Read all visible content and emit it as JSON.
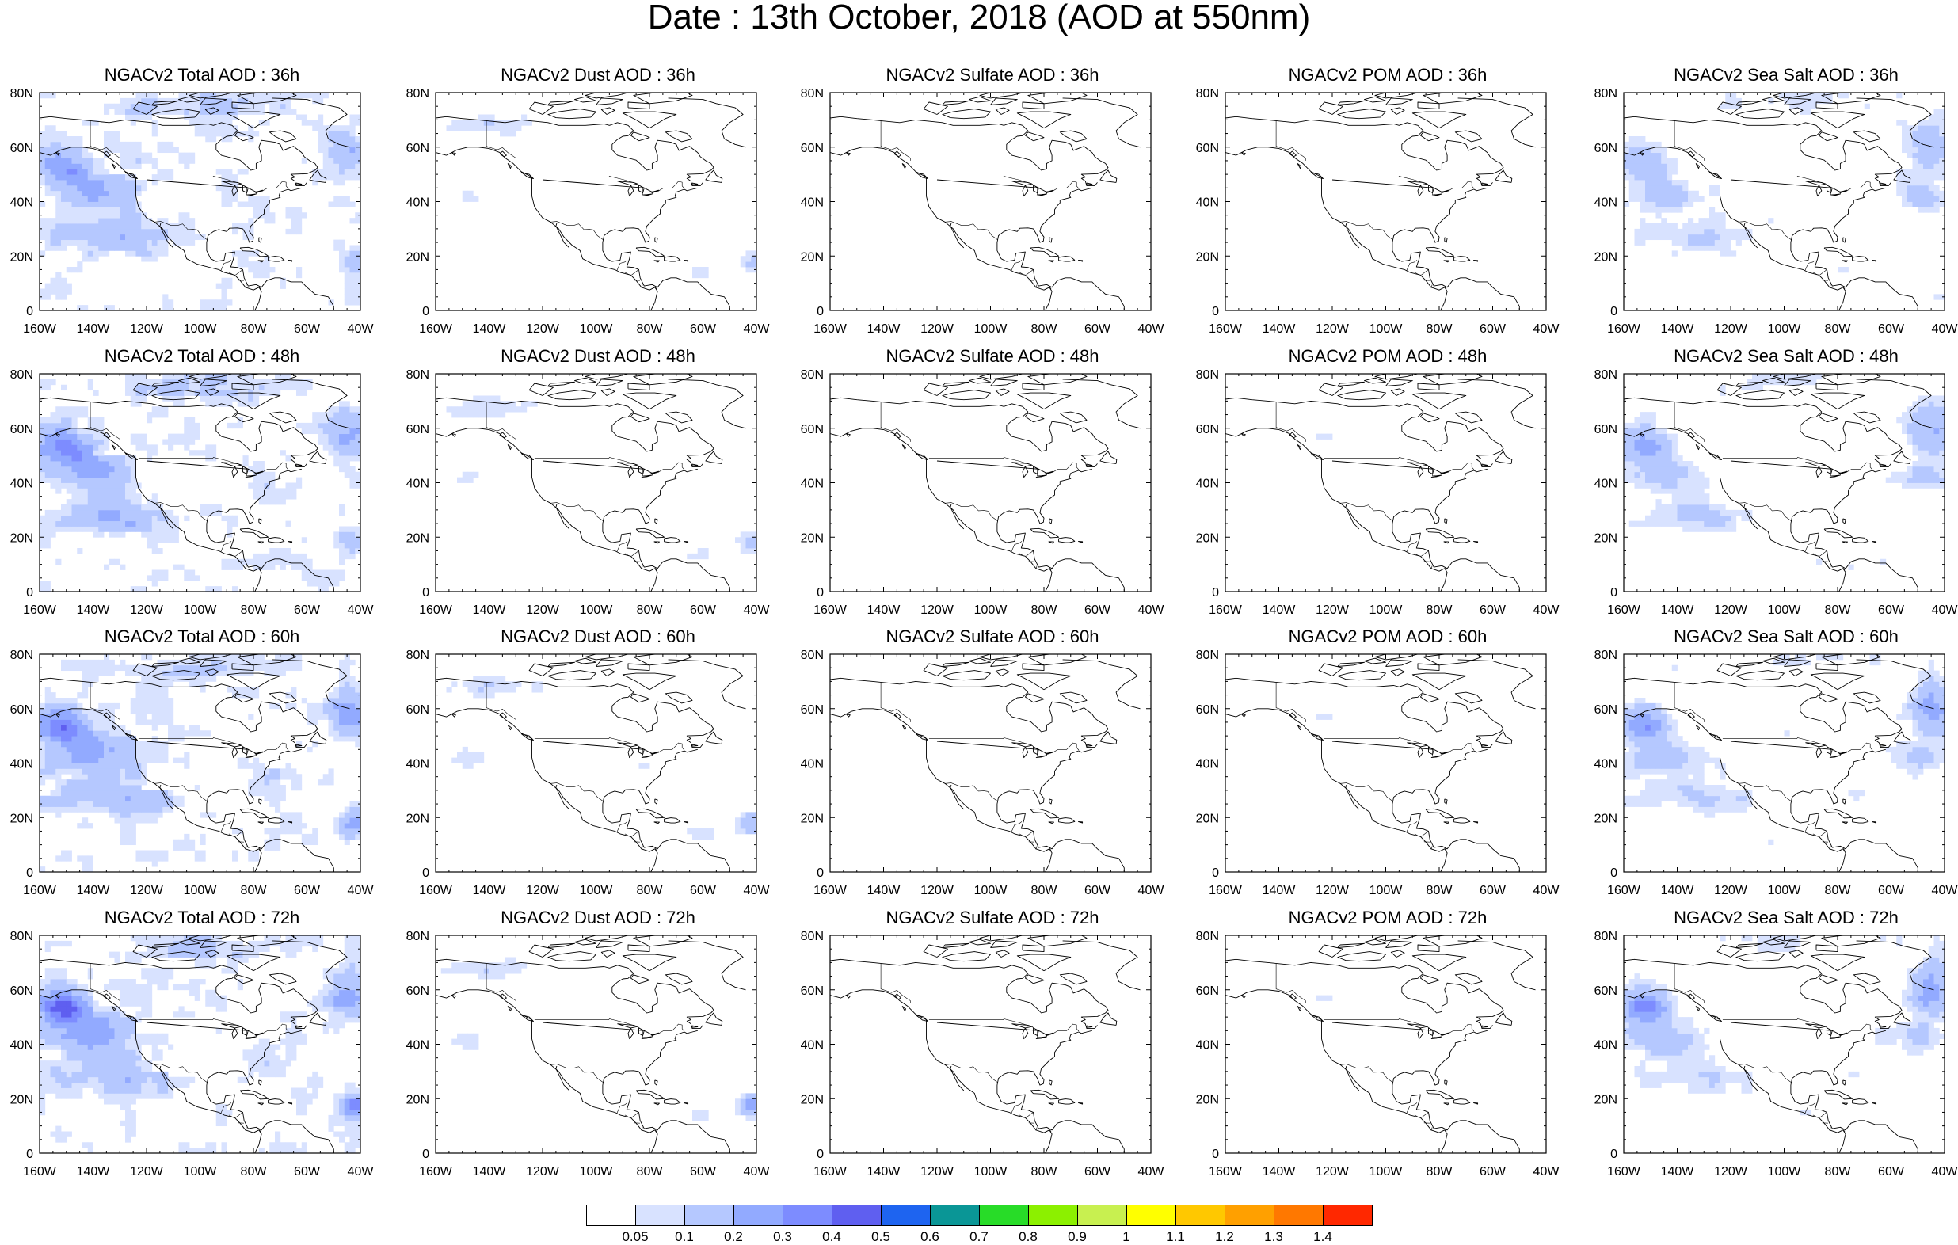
{
  "title": "Date : 13th October, 2018 (AOD at 550nm)",
  "panels": [
    [
      "NGACv2 Total AOD : 36h",
      "NGACv2 Dust AOD : 36h",
      "NGACv2 Sulfate AOD : 36h",
      "NGACv2 POM AOD : 36h",
      "NGACv2 Sea Salt AOD : 36h"
    ],
    [
      "NGACv2 Total AOD : 48h",
      "NGACv2 Dust AOD : 48h",
      "NGACv2 Sulfate AOD : 48h",
      "NGACv2 POM AOD : 48h",
      "NGACv2 Sea Salt AOD : 48h"
    ],
    [
      "NGACv2 Total AOD : 60h",
      "NGACv2 Dust AOD : 60h",
      "NGACv2 Sulfate AOD : 60h",
      "NGACv2 POM AOD : 60h",
      "NGACv2 Sea Salt AOD : 60h"
    ],
    [
      "NGACv2 Total AOD : 72h",
      "NGACv2 Dust AOD : 72h",
      "NGACv2 Sulfate AOD : 72h",
      "NGACv2 POM AOD : 72h",
      "NGACv2 Sea Salt  AOD : 72h"
    ]
  ],
  "map": {
    "lon_range": [
      -160,
      -40
    ],
    "lat_range": [
      0,
      80
    ],
    "x_ticks": [
      "160W",
      "140W",
      "120W",
      "100W",
      "80W",
      "60W",
      "40W"
    ],
    "y_ticks": [
      "0",
      "20N",
      "40N",
      "60N",
      "80N"
    ]
  },
  "colorbar": {
    "colors": [
      "#ffffff",
      "#d8e2ff",
      "#b5c8ff",
      "#92aaff",
      "#7d8cff",
      "#5f5ff0",
      "#1e64f0",
      "#0a9696",
      "#28dc28",
      "#8cf000",
      "#c8f050",
      "#ffff00",
      "#ffc800",
      "#ffa000",
      "#ff7800",
      "#ff2800"
    ],
    "labels": [
      "0.05",
      "0.1",
      "0.2",
      "0.3",
      "0.4",
      "0.5",
      "0.6",
      "0.7",
      "0.8",
      "0.9",
      "1",
      "1.1",
      "1.2",
      "1.3",
      "1.4"
    ]
  },
  "fields": {
    "total": "light-blue AOD 0.05-0.3 over Pacific, Atlantic, northern Canada",
    "dust": "sparse 0.05-0.1 patches over NW Canada and tropical Atlantic",
    "sulfate": "near zero",
    "pom": "near zero, small patches",
    "seasalt": "0.05-0.2 swirls over N Pacific and N Atlantic"
  }
}
